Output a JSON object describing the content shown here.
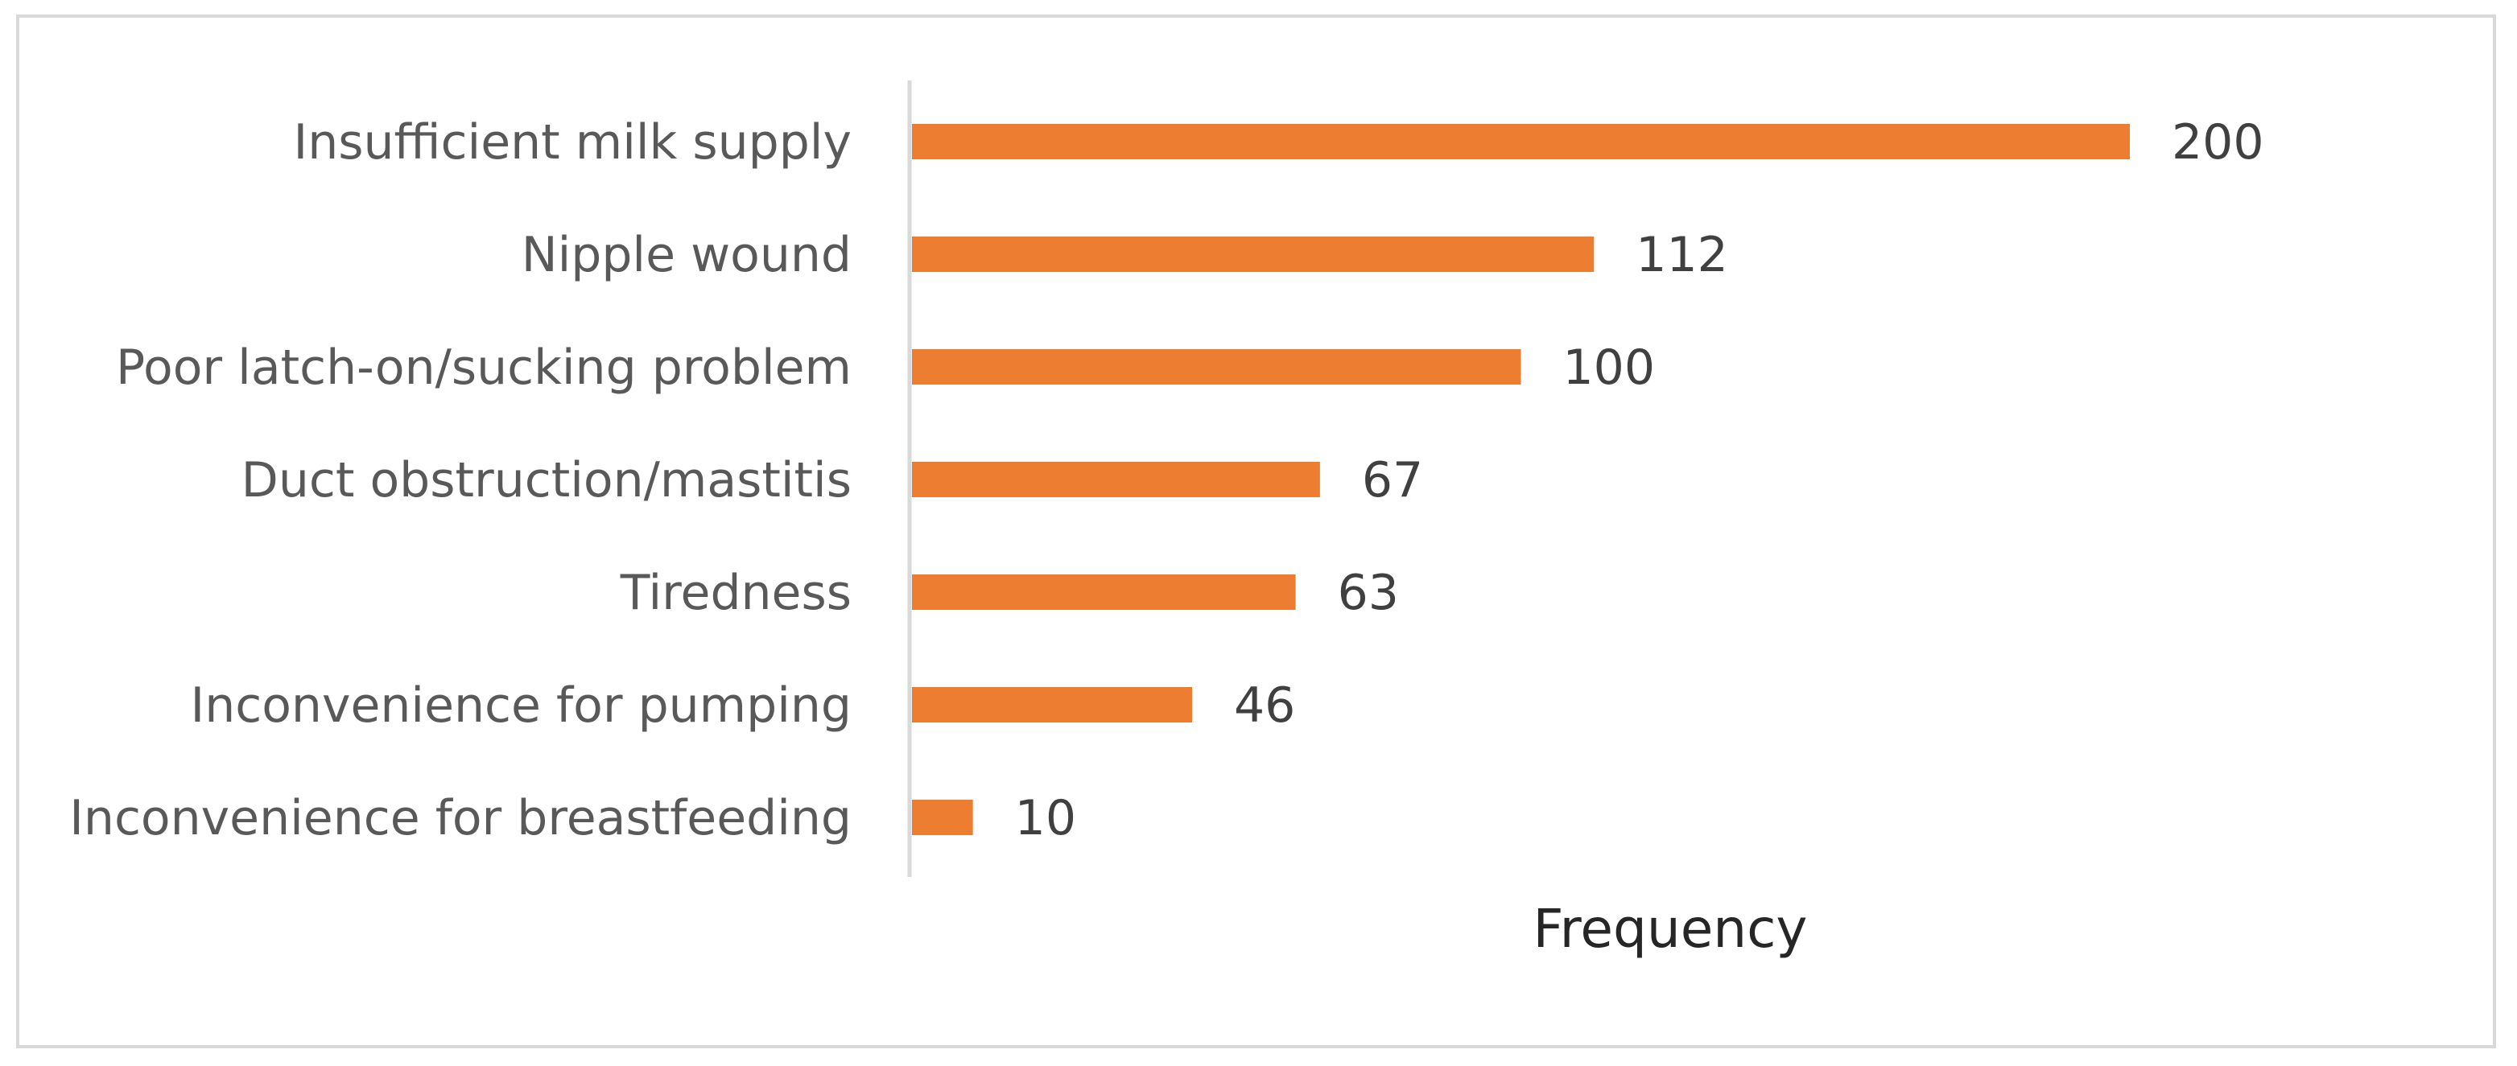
{
  "chart_data": {
    "type": "bar",
    "orientation": "horizontal",
    "title": "",
    "xlabel": "Frequency",
    "ylabel": "",
    "xlim": [
      0,
      200
    ],
    "grid": false,
    "legend": "none",
    "bar_color": "#ed7d31",
    "categories": [
      "Insufficient milk supply",
      "Nipple wound",
      "Poor latch-on/sucking problem",
      "Duct obstruction/mastitis",
      "Tiredness",
      "Inconvenience for pumping",
      "Inconvenience for breastfeeding"
    ],
    "values": [
      200,
      112,
      100,
      67,
      63,
      46,
      10
    ]
  }
}
